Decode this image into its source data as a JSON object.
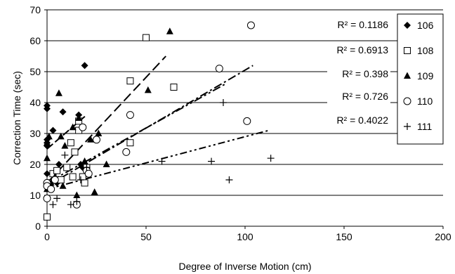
{
  "chart_data": {
    "type": "scatter",
    "xlabel": "Degree of Inverse Motion (cm)",
    "ylabel": "Correction Time (sec)",
    "xlim": [
      0,
      200
    ],
    "ylim": [
      0,
      70
    ],
    "x_ticks": [
      "0",
      "50",
      "100",
      "150",
      "200"
    ],
    "y_ticks": [
      "0",
      "10",
      "20",
      "30",
      "40",
      "50",
      "60",
      "70"
    ],
    "grid": "horizontal",
    "legend_position": "right",
    "series": [
      {
        "name": "106",
        "marker": "diamond",
        "r2_label": "R² = 0.1186",
        "trend": {
          "x1": 0,
          "y1": 25,
          "x2": 20,
          "y2": 36
        },
        "points": [
          [
            0,
            38
          ],
          [
            0,
            39
          ],
          [
            0,
            28
          ],
          [
            0,
            27
          ],
          [
            0,
            26
          ],
          [
            0,
            17
          ],
          [
            0,
            13
          ],
          [
            2,
            14
          ],
          [
            3,
            31
          ],
          [
            5,
            14
          ],
          [
            6,
            20
          ],
          [
            8,
            37
          ],
          [
            16,
            36
          ],
          [
            17,
            20
          ],
          [
            19,
            52
          ],
          [
            18,
            19
          ]
        ]
      },
      {
        "name": "108",
        "marker": "square",
        "r2_label": "R² = 0.6913",
        "trend": {
          "x1": 0,
          "y1": 14,
          "x2": 60,
          "y2": 55
        },
        "points": [
          [
            0,
            3
          ],
          [
            1,
            14
          ],
          [
            3,
            17
          ],
          [
            5,
            18
          ],
          [
            7,
            15
          ],
          [
            10,
            19
          ],
          [
            12,
            27
          ],
          [
            13,
            16
          ],
          [
            14,
            24
          ],
          [
            16,
            31
          ],
          [
            16,
            34
          ],
          [
            18,
            16
          ],
          [
            19,
            14
          ],
          [
            20,
            19
          ],
          [
            42,
            47
          ],
          [
            42,
            27
          ],
          [
            50,
            61
          ],
          [
            64,
            45
          ]
        ]
      },
      {
        "name": "109",
        "marker": "triangle",
        "r2_label": "R² = 0.398",
        "trend": {
          "x1": 0,
          "y1": 13,
          "x2": 104,
          "y2": 52
        },
        "points": [
          [
            0,
            12
          ],
          [
            0,
            22
          ],
          [
            0,
            27
          ],
          [
            1,
            29
          ],
          [
            2,
            14
          ],
          [
            4,
            16
          ],
          [
            6,
            43
          ],
          [
            7,
            29
          ],
          [
            8,
            13
          ],
          [
            9,
            26
          ],
          [
            13,
            32
          ],
          [
            15,
            10
          ],
          [
            16,
            35
          ],
          [
            19,
            21
          ],
          [
            22,
            28
          ],
          [
            24,
            11
          ],
          [
            26,
            30
          ],
          [
            30,
            20
          ],
          [
            51,
            44
          ],
          [
            62,
            63
          ]
        ]
      },
      {
        "name": "110",
        "marker": "circle",
        "r2_label": "R² = 0.726",
        "trend": {
          "x1": 0,
          "y1": 14,
          "x2": 90,
          "y2": 46
        },
        "points": [
          [
            0,
            14
          ],
          [
            0,
            9
          ],
          [
            0,
            13
          ],
          [
            2,
            12
          ],
          [
            4,
            15
          ],
          [
            15,
            7
          ],
          [
            18,
            32
          ],
          [
            20,
            18
          ],
          [
            21,
            17
          ],
          [
            25,
            28
          ],
          [
            40,
            24
          ],
          [
            42,
            36
          ],
          [
            87,
            51
          ],
          [
            101,
            34
          ],
          [
            103,
            65
          ]
        ]
      },
      {
        "name": "111",
        "marker": "plus",
        "r2_label": "R² = 0.4022",
        "trend": {
          "x1": 0,
          "y1": 12,
          "x2": 112,
          "y2": 31
        },
        "points": [
          [
            3,
            7
          ],
          [
            5,
            9
          ],
          [
            9,
            23
          ],
          [
            12,
            7
          ],
          [
            15,
            8
          ],
          [
            17,
            15
          ],
          [
            20,
            19
          ],
          [
            58,
            21
          ],
          [
            83,
            21
          ],
          [
            89,
            40
          ],
          [
            92,
            15
          ],
          [
            113,
            22
          ]
        ]
      }
    ]
  }
}
